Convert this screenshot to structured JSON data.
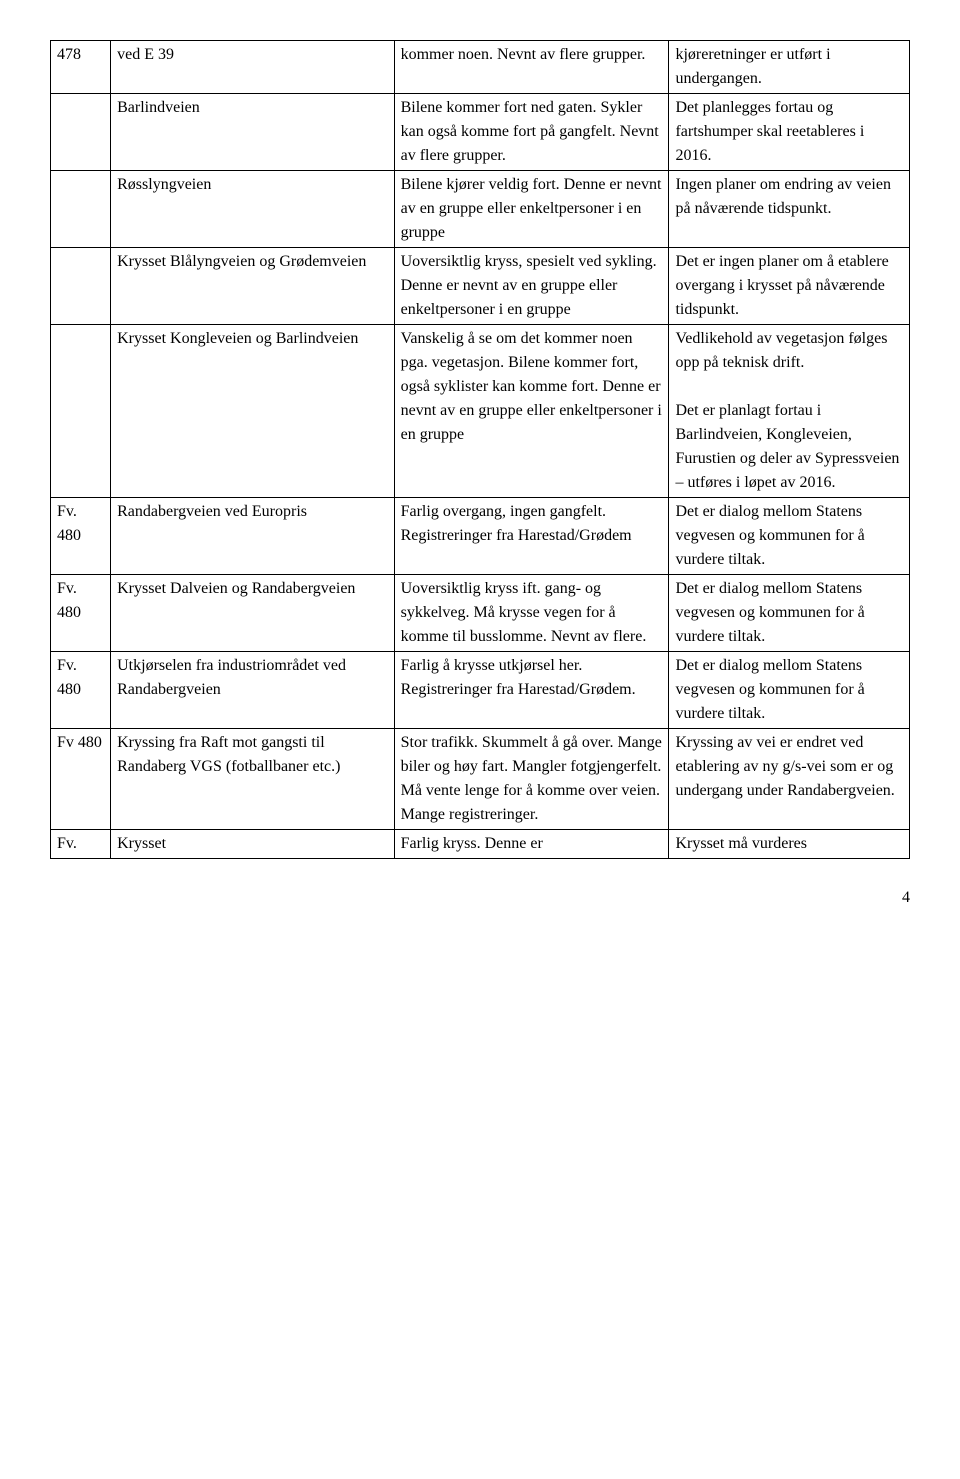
{
  "table": {
    "rows": [
      {
        "c1": "478",
        "c2": "ved E 39",
        "c3": "kommer noen. Nevnt av flere grupper.",
        "c4": "kjøreretninger er utført i undergangen."
      },
      {
        "c1": "",
        "c2": "Barlindveien",
        "c3": "Bilene kommer fort ned gaten. Sykler kan også komme fort på gangfelt. Nevnt av flere grupper.",
        "c4": "Det planlegges fortau og fartshumper skal reetableres i 2016."
      },
      {
        "c1": "",
        "c2": "Røsslyngveien",
        "c3": "Bilene kjører veldig fort. Denne er nevnt av en gruppe eller enkeltpersoner i en gruppe",
        "c4": "Ingen planer om endring av veien på nåværende tidspunkt."
      },
      {
        "c1": "",
        "c2": "Krysset Blålyngveien og Grødemveien",
        "c3": "Uoversiktlig kryss, spesielt ved sykling. Denne er nevnt av en gruppe eller enkeltpersoner i en gruppe",
        "c4": "Det er ingen planer om å etablere overgang i krysset på nåværende tidspunkt."
      },
      {
        "c1": "",
        "c2": "Krysset Kongleveien og Barlindveien",
        "c3": "Vanskelig å se om det kommer noen pga. vegetasjon. Bilene kommer fort, også syklister kan komme fort. Denne er nevnt av en gruppe eller enkeltpersoner i en gruppe",
        "c4a": "Vedlikehold av vegetasjon følges opp på teknisk drift.",
        "c4b": "Det er planlagt fortau i Barlindveien, Kongleveien, Furustien og deler av Sypressveien – utføres i løpet av 2016."
      },
      {
        "c1": "Fv. 480",
        "c2": "Randabergveien ved Europris",
        "c3": "Farlig overgang, ingen gangfelt. Registreringer fra Harestad/Grødem",
        "c4": "Det er dialog mellom Statens vegvesen og kommunen for å vurdere tiltak."
      },
      {
        "c1": "Fv. 480",
        "c2": "Krysset Dalveien og Randabergveien",
        "c3": "Uoversiktlig kryss ift. gang- og sykkelveg.\nMå krysse vegen for å komme til busslomme. Nevnt av flere.",
        "c4": "Det er dialog mellom Statens vegvesen og kommunen for å vurdere tiltak."
      },
      {
        "c1": "Fv. 480",
        "c2": "Utkjørselen fra industriområdet ved Randabergveien",
        "c3": "Farlig å krysse utkjørsel her. Registreringer fra Harestad/Grødem.",
        "c4": "Det er dialog mellom Statens vegvesen og kommunen for å vurdere tiltak."
      },
      {
        "c1": "Fv 480",
        "c2": "Kryssing fra Raft mot gangsti til Randaberg VGS (fotballbaner etc.)",
        "c3": "Stor trafikk. Skummelt å gå over. Mange biler og høy fart. Mangler fotgjengerfelt. Må vente lenge for å komme over veien. Mange registreringer.",
        "c4": "Kryssing av vei er endret ved etablering av ny g/s-vei som er og undergang under Randabergveien."
      },
      {
        "c1": "Fv.",
        "c2": "Krysset",
        "c3": "Farlig kryss. Denne er",
        "c4": "Krysset må vurderes"
      }
    ]
  },
  "pageNumber": "4"
}
